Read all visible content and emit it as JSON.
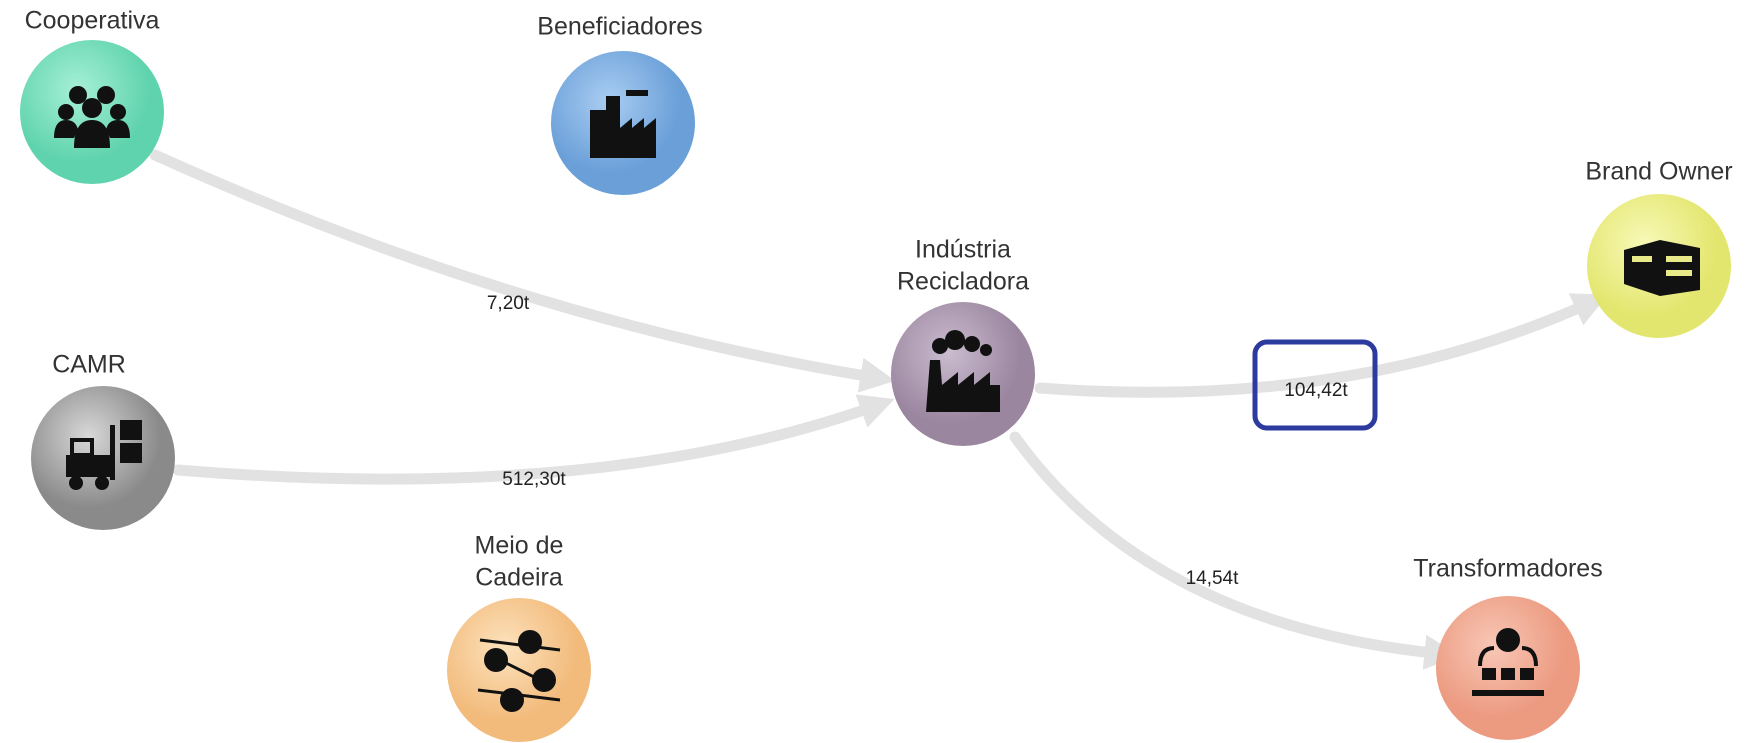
{
  "nodes": [
    {
      "label": [
        "Cooperativa"
      ]
    },
    {
      "label": [
        "Beneficiadores"
      ]
    },
    {
      "label": [
        "CAMR"
      ]
    },
    {
      "label": [
        "Meio de",
        "Cadeira"
      ]
    },
    {
      "label": [
        "Indústria",
        "Recicladora"
      ]
    },
    {
      "label": [
        "Brand Owner"
      ]
    },
    {
      "label": [
        "Transformadores"
      ]
    }
  ],
  "edges": [
    {
      "label": "7,20t"
    },
    {
      "label": "512,30t"
    },
    {
      "label": "104,42t"
    },
    {
      "label": "14,54t"
    }
  ]
}
